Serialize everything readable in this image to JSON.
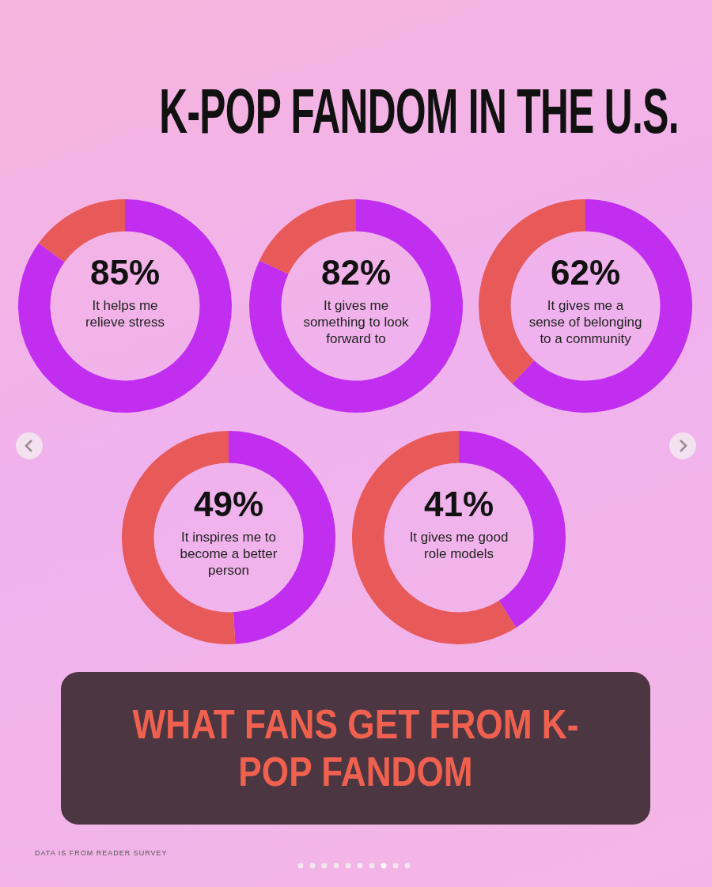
{
  "chart_data": [
    {
      "type": "other",
      "title": "K-POP FANDOM IN THE U.S."
    },
    {
      "type": "donut",
      "categories": [
        "It helps me relieve stress",
        null
      ],
      "values": [
        85,
        15
      ],
      "colors": [
        "#c12ef0",
        "#e8595a"
      ],
      "value_labels": [
        "85%",
        null
      ]
    },
    {
      "type": "donut",
      "categories": [
        "It gives me something to look forward to",
        null
      ],
      "values": [
        82,
        18
      ],
      "colors": [
        "#c12ef0",
        "#e8595a"
      ],
      "value_labels": [
        "82%",
        null
      ]
    },
    {
      "type": "donut",
      "categories": [
        "It gives me a sense of belonging to a community",
        null
      ],
      "values": [
        62,
        38
      ],
      "colors": [
        "#c12ef0",
        "#e8595a"
      ],
      "value_labels": [
        "62%",
        null
      ]
    },
    {
      "type": "donut",
      "categories": [
        "It inspires me to become a better person",
        null
      ],
      "values": [
        49,
        51
      ],
      "colors": [
        "#c12ef0",
        "#e8595a"
      ],
      "value_labels": [
        "49%",
        null
      ]
    },
    {
      "type": "donut",
      "categories": [
        "It gives me good role models",
        null
      ],
      "values": [
        41,
        59
      ],
      "colors": [
        "#c12ef0",
        "#e8595a"
      ],
      "value_labels": [
        "41%",
        null
      ]
    },
    {
      "type": "other",
      "title": "WHAT FANS GET FROM K-POP FANDOM",
      "annotations": [
        "DATA IS FROM READER SURVEY"
      ]
    }
  ]
}
